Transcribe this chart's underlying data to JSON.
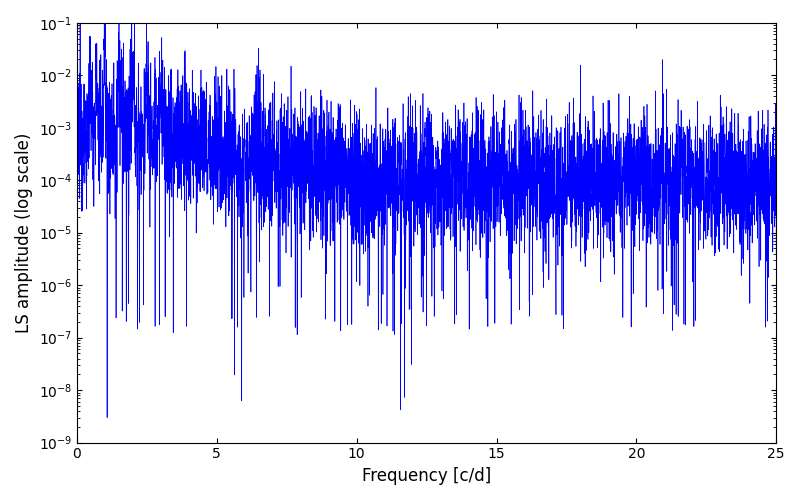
{
  "xlabel": "Frequency [c/d]",
  "ylabel": "LS amplitude (log scale)",
  "line_color": "#0000ff",
  "xlim": [
    0,
    25
  ],
  "ylim": [
    1e-09,
    0.1
  ],
  "background_color": "#ffffff",
  "figsize": [
    8.0,
    5.0
  ],
  "dpi": 100,
  "seed": 12345,
  "n_points": 5000,
  "freq_max": 25.0,
  "freq_min": 0.005,
  "peak_freq": 1.0,
  "peak_amplitude": 0.06,
  "base_level": 0.0001,
  "envelope_decay": 0.04,
  "deep_spike_freq": 1.08,
  "deep_spike_amplitude": 3e-09,
  "noise_log_sigma": 1.5,
  "linewidth": 0.5
}
